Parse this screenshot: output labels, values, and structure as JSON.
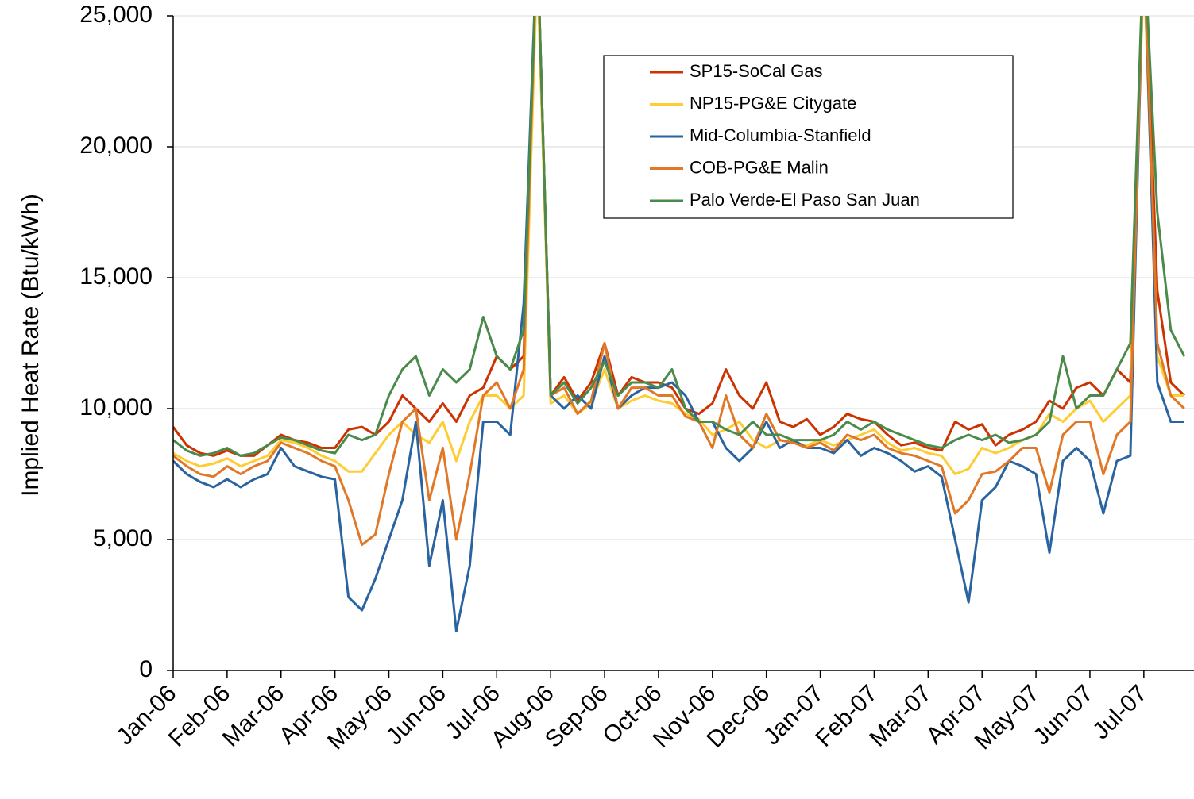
{
  "chart_data": {
    "type": "line",
    "y_label": "Implied Heat Rate (Btu/kWh)",
    "categories": [
      "Jan-06",
      null,
      null,
      null,
      "Feb-06",
      null,
      null,
      null,
      "Mar-06",
      null,
      null,
      null,
      "Apr-06",
      null,
      null,
      null,
      "May-06",
      null,
      null,
      null,
      "Jun-06",
      null,
      null,
      null,
      "Jul-06",
      null,
      null,
      null,
      "Aug-06",
      null,
      null,
      null,
      "Sep-06",
      null,
      null,
      null,
      "Oct-06",
      null,
      null,
      null,
      "Nov-06",
      null,
      null,
      null,
      "Dec-06",
      null,
      null,
      null,
      "Jan-07",
      null,
      null,
      null,
      "Feb-07",
      null,
      null,
      null,
      "Mar-07",
      null,
      null,
      null,
      "Apr-07",
      null,
      null,
      null,
      "May-07",
      null,
      null,
      null,
      "Jun-07",
      null,
      null,
      null,
      "Jul-07",
      null,
      null,
      null
    ],
    "ylim": [
      0,
      25000
    ],
    "yticks": [
      0,
      {
        "value": 5000,
        "label": "5,000"
      },
      {
        "value": 10000,
        "label": "10,000"
      },
      {
        "value": 15000,
        "label": "15,000"
      },
      {
        "value": 20000,
        "label": "20,000"
      },
      {
        "value": 25000,
        "label": "25,000"
      }
    ],
    "grid": true,
    "legend": "top-right",
    "series": [
      {
        "name": "SP15-SoCal Gas",
        "color": "#cc3300",
        "values": [
          9300,
          8600,
          8300,
          8200,
          8400,
          8200,
          8200,
          8600,
          9000,
          8800,
          8700,
          8500,
          8500,
          9200,
          9300,
          9000,
          9500,
          10500,
          10000,
          9500,
          10200,
          9500,
          10500,
          10800,
          12000,
          11500,
          12000,
          28000,
          10500,
          11200,
          10300,
          11000,
          12500,
          10500,
          11200,
          11000,
          11000,
          10800,
          10000,
          9800,
          10200,
          11500,
          10500,
          10000,
          11000,
          9500,
          9300,
          9600,
          9000,
          9300,
          9800,
          9600,
          9500,
          9000,
          8600,
          8700,
          8500,
          8400,
          9500,
          9200,
          9400,
          8600,
          9000,
          9200,
          9500,
          10300,
          10000,
          10800,
          11000,
          10500,
          11500,
          11000,
          28000,
          14500,
          11000,
          10500
        ]
      },
      {
        "name": "NP15-PG&E Citygate",
        "color": "#ffcc33",
        "values": [
          8300,
          8000,
          7800,
          7900,
          8100,
          7800,
          8000,
          8200,
          8800,
          8700,
          8500,
          8200,
          8000,
          7600,
          7600,
          8300,
          9000,
          9500,
          9000,
          8700,
          9500,
          8000,
          9500,
          10500,
          10500,
          10000,
          10500,
          27000,
          10200,
          10500,
          9800,
          10200,
          11500,
          10000,
          10300,
          10500,
          10300,
          10200,
          9800,
          9600,
          9000,
          9200,
          9500,
          8800,
          8500,
          8800,
          8700,
          8600,
          8800,
          8600,
          8800,
          9000,
          9200,
          8700,
          8400,
          8500,
          8300,
          8200,
          7500,
          7700,
          8500,
          8300,
          8500,
          8800,
          9000,
          9800,
          9500,
          10000,
          10300,
          9500,
          10000,
          10500,
          27000,
          12000,
          10500,
          10500
        ]
      },
      {
        "name": "Mid-Columbia-Stanfield",
        "color": "#2a64a0",
        "values": [
          8000,
          7500,
          7200,
          7000,
          7300,
          7000,
          7300,
          7500,
          8500,
          7800,
          7600,
          7400,
          7300,
          2800,
          2300,
          3500,
          5000,
          6500,
          9500,
          4000,
          6500,
          1500,
          4000,
          9500,
          9500,
          9000,
          14000,
          28000,
          10500,
          10000,
          10500,
          10000,
          12000,
          10000,
          10500,
          10800,
          10800,
          11000,
          10500,
          9500,
          9500,
          8500,
          8000,
          8500,
          9500,
          8500,
          8800,
          8500,
          8500,
          8300,
          8800,
          8200,
          8500,
          8300,
          8000,
          7600,
          7800,
          7400,
          5000,
          2600,
          6500,
          7000,
          8000,
          7800,
          7500,
          4500,
          8000,
          8500,
          8000,
          6000,
          8000,
          8200,
          28000,
          11000,
          9500,
          9500
        ]
      },
      {
        "name": "COB-PG&E Malin",
        "color": "#e07828",
        "values": [
          8200,
          7800,
          7500,
          7400,
          7800,
          7500,
          7800,
          8000,
          8700,
          8500,
          8300,
          8000,
          7800,
          6500,
          4800,
          5200,
          7500,
          9500,
          10000,
          6500,
          8500,
          5000,
          7500,
          10500,
          11000,
          10000,
          11500,
          28000,
          10500,
          10800,
          9800,
          10300,
          12500,
          10000,
          10800,
          10800,
          10500,
          10500,
          9700,
          9500,
          8500,
          10500,
          9000,
          8500,
          9800,
          8800,
          8700,
          8500,
          8700,
          8400,
          9000,
          8800,
          9000,
          8500,
          8300,
          8200,
          8000,
          7800,
          6000,
          6500,
          7500,
          7600,
          8000,
          8500,
          8500,
          6800,
          9000,
          9500,
          9500,
          7500,
          9000,
          9500,
          28000,
          12500,
          10500,
          10000
        ]
      },
      {
        "name": "Palo Verde-El Paso San Juan",
        "color": "#4a8a4a",
        "values": [
          8800,
          8400,
          8200,
          8300,
          8500,
          8200,
          8300,
          8600,
          8900,
          8800,
          8600,
          8400,
          8300,
          9000,
          8800,
          9000,
          10500,
          11500,
          12000,
          10500,
          11500,
          11000,
          11500,
          13500,
          12000,
          11500,
          13000,
          28000,
          10500,
          11000,
          10200,
          10800,
          11800,
          10500,
          11000,
          11000,
          10800,
          11500,
          10000,
          9500,
          9500,
          9200,
          9000,
          9500,
          9000,
          9000,
          8800,
          8800,
          8800,
          9000,
          9500,
          9200,
          9500,
          9200,
          9000,
          8800,
          8600,
          8500,
          8800,
          9000,
          8800,
          9000,
          8700,
          8800,
          9000,
          9500,
          12000,
          10000,
          10500,
          10500,
          11500,
          12500,
          28000,
          17500,
          13000,
          12000
        ]
      }
    ]
  }
}
